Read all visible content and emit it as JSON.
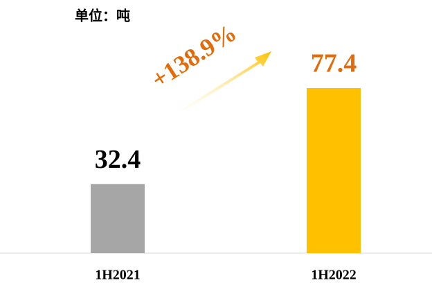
{
  "chart_data": {
    "type": "bar",
    "title": "单位：吨",
    "annotation": "+138.9%",
    "categories": [
      "1H2021",
      "1H2022"
    ],
    "values": [
      32.4,
      77.4
    ],
    "colors": [
      "#a6a6a6",
      "#ffc000"
    ],
    "label_colors": [
      "#000000",
      "#e36c0a"
    ]
  }
}
